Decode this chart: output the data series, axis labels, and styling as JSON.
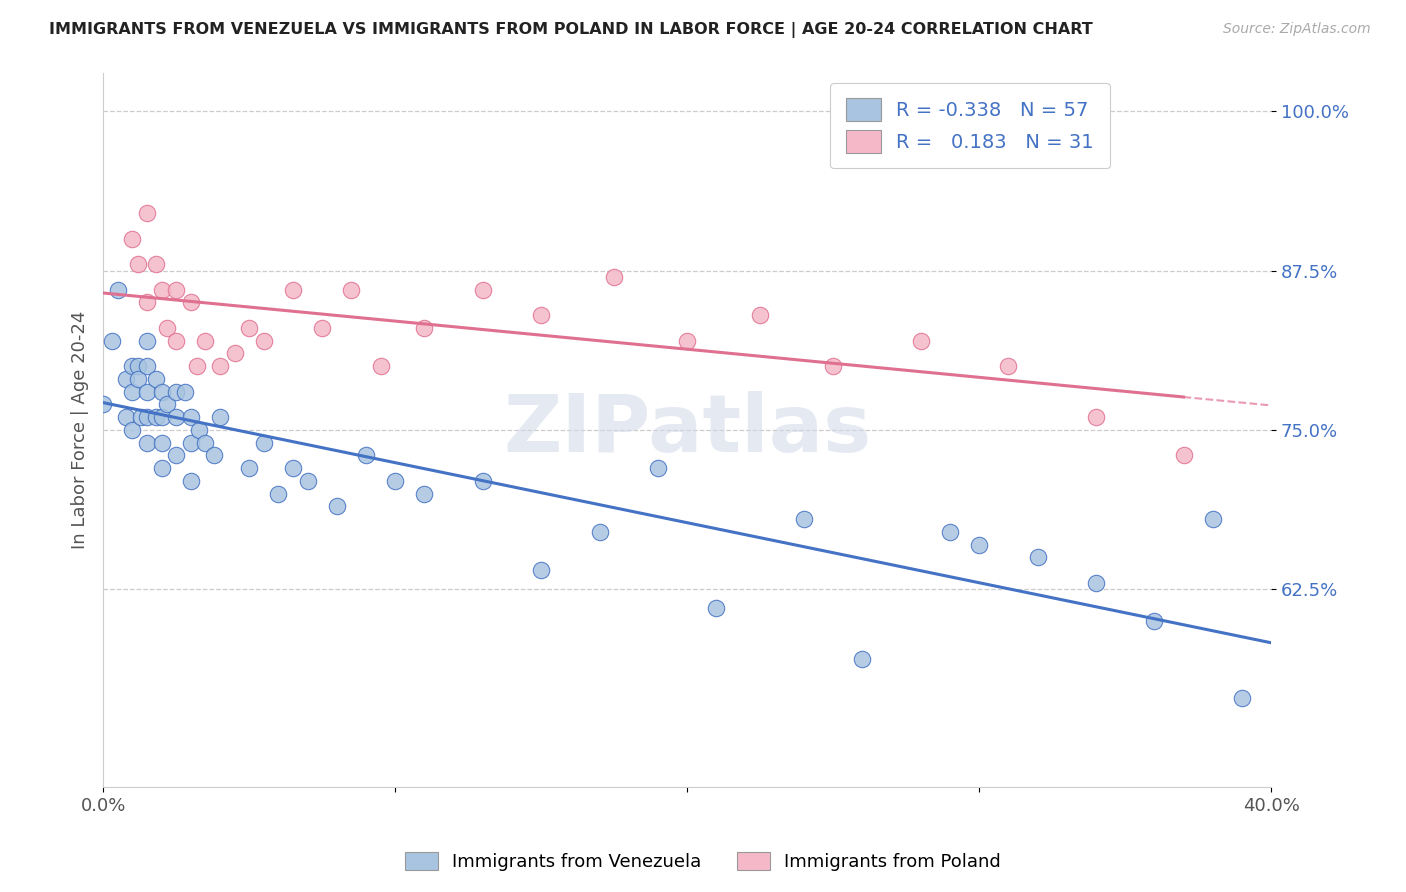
{
  "title": "IMMIGRANTS FROM VENEZUELA VS IMMIGRANTS FROM POLAND IN LABOR FORCE | AGE 20-24 CORRELATION CHART",
  "source": "Source: ZipAtlas.com",
  "xlabel": "",
  "ylabel": "In Labor Force | Age 20-24",
  "xlim": [
    0.0,
    0.4
  ],
  "ylim": [
    0.47,
    1.03
  ],
  "yticks": [
    0.625,
    0.75,
    0.875,
    1.0
  ],
  "ytick_labels": [
    "62.5%",
    "75.0%",
    "87.5%",
    "100.0%"
  ],
  "xticks": [
    0.0,
    0.1,
    0.2,
    0.3,
    0.4
  ],
  "xtick_labels": [
    "0.0%",
    "",
    "",
    "",
    "40.0%"
  ],
  "watermark": "ZIPatlas",
  "color_venezuela": "#a8c4e0",
  "color_poland": "#f4b8c8",
  "line_color_venezuela": "#4472c4",
  "line_color_poland": "#e07090",
  "venezuela_x": [
    0.0,
    0.003,
    0.005,
    0.008,
    0.008,
    0.01,
    0.01,
    0.01,
    0.012,
    0.012,
    0.013,
    0.015,
    0.015,
    0.015,
    0.015,
    0.015,
    0.018,
    0.018,
    0.02,
    0.02,
    0.02,
    0.02,
    0.022,
    0.025,
    0.025,
    0.025,
    0.028,
    0.03,
    0.03,
    0.03,
    0.033,
    0.035,
    0.038,
    0.04,
    0.05,
    0.055,
    0.06,
    0.065,
    0.07,
    0.08,
    0.09,
    0.1,
    0.11,
    0.13,
    0.15,
    0.17,
    0.19,
    0.21,
    0.24,
    0.26,
    0.29,
    0.3,
    0.32,
    0.34,
    0.36,
    0.38,
    0.39
  ],
  "venezuela_y": [
    0.77,
    0.82,
    0.86,
    0.79,
    0.76,
    0.8,
    0.78,
    0.75,
    0.8,
    0.79,
    0.76,
    0.82,
    0.8,
    0.78,
    0.76,
    0.74,
    0.79,
    0.76,
    0.78,
    0.76,
    0.74,
    0.72,
    0.77,
    0.78,
    0.76,
    0.73,
    0.78,
    0.76,
    0.74,
    0.71,
    0.75,
    0.74,
    0.73,
    0.76,
    0.72,
    0.74,
    0.7,
    0.72,
    0.71,
    0.69,
    0.73,
    0.71,
    0.7,
    0.71,
    0.64,
    0.67,
    0.72,
    0.61,
    0.68,
    0.57,
    0.67,
    0.66,
    0.65,
    0.63,
    0.6,
    0.68,
    0.54
  ],
  "poland_x": [
    0.01,
    0.012,
    0.015,
    0.015,
    0.018,
    0.02,
    0.022,
    0.025,
    0.025,
    0.03,
    0.032,
    0.035,
    0.04,
    0.045,
    0.05,
    0.055,
    0.065,
    0.075,
    0.085,
    0.095,
    0.11,
    0.13,
    0.15,
    0.175,
    0.2,
    0.225,
    0.25,
    0.28,
    0.31,
    0.34,
    0.37
  ],
  "poland_y": [
    0.9,
    0.88,
    0.92,
    0.85,
    0.88,
    0.86,
    0.83,
    0.86,
    0.82,
    0.85,
    0.8,
    0.82,
    0.8,
    0.81,
    0.83,
    0.82,
    0.86,
    0.83,
    0.86,
    0.8,
    0.83,
    0.86,
    0.84,
    0.87,
    0.82,
    0.84,
    0.8,
    0.82,
    0.8,
    0.76,
    0.73
  ],
  "background_color": "#ffffff",
  "grid_color": "#cccccc"
}
